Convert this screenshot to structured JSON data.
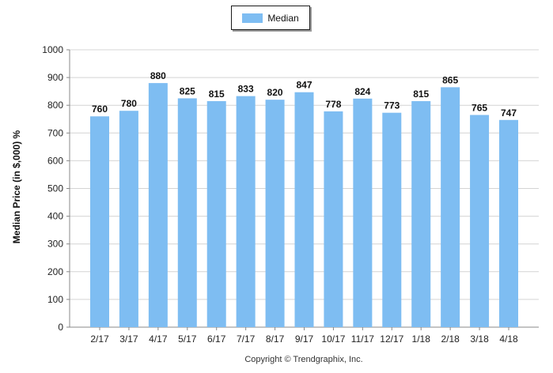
{
  "chart_data": {
    "type": "bar",
    "ylabel": "Median Price (in $,000) %",
    "xlabel": "",
    "ylim": [
      0,
      1000
    ],
    "yticks": [
      0,
      100,
      200,
      300,
      400,
      500,
      600,
      700,
      800,
      900,
      1000
    ],
    "categories": [
      "2/17",
      "3/17",
      "4/17",
      "5/17",
      "6/17",
      "7/17",
      "8/17",
      "9/17",
      "10/17",
      "11/17",
      "12/17",
      "1/18",
      "2/18",
      "3/18",
      "4/18"
    ],
    "series": [
      {
        "name": "Median",
        "values": [
          760,
          780,
          880,
          825,
          815,
          833,
          820,
          847,
          778,
          824,
          773,
          815,
          865,
          765,
          747
        ]
      }
    ],
    "grid": true,
    "legend": "top-center",
    "bar_color": "#7ebdf2"
  },
  "footer": {
    "copyright": "Copyright © Trendgraphix, Inc."
  }
}
